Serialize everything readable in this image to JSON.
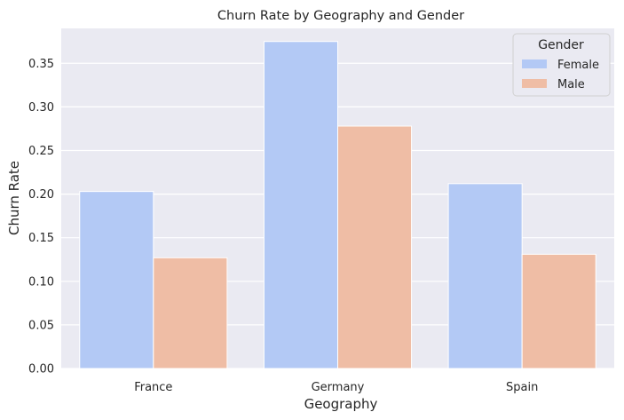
{
  "chart_data": {
    "type": "bar",
    "title": "Churn Rate by Geography and Gender",
    "xlabel": "Geography",
    "ylabel": "Churn Rate",
    "categories": [
      "France",
      "Germany",
      "Spain"
    ],
    "series": [
      {
        "name": "Female",
        "values": [
          0.203,
          0.375,
          0.212
        ]
      },
      {
        "name": "Male",
        "values": [
          0.127,
          0.278,
          0.131
        ]
      }
    ],
    "ylim": [
      0,
      0.39
    ],
    "yticks": [
      0.0,
      0.05,
      0.1,
      0.15,
      0.2,
      0.25,
      0.3,
      0.35
    ],
    "ytick_labels": [
      "0.00",
      "0.05",
      "0.10",
      "0.15",
      "0.20",
      "0.25",
      "0.30",
      "0.35"
    ],
    "legend": {
      "title": "Gender",
      "placement": "top-right"
    },
    "grid": true,
    "colors": {
      "Female": "#b3c9f5",
      "Male": "#efbda5",
      "background": "#eaeaf2",
      "grid": "#ffffff"
    }
  }
}
